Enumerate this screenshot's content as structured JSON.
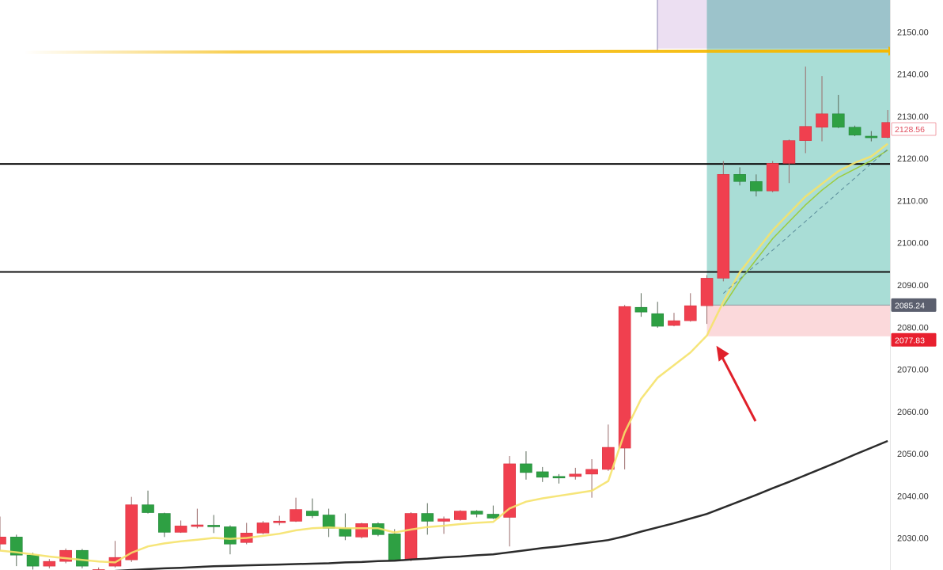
{
  "chart_data": {
    "type": "candlestick",
    "title": "",
    "xlabel": "",
    "ylabel": "",
    "ylim": [
      2022.4,
      2157.6
    ],
    "grid": false,
    "y_ticks": [
      "2150.00",
      "2140.00",
      "2130.00",
      "2120.00",
      "2110.00",
      "2100.00",
      "2090.00",
      "2080.00",
      "2070.00",
      "2060.00",
      "2050.00",
      "2040.00",
      "2030.00"
    ],
    "y_tick_values": [
      2150,
      2140,
      2130,
      2120,
      2110,
      2100,
      2090,
      2080,
      2070,
      2060,
      2050,
      2040,
      2030
    ],
    "up_color": "#f0404f",
    "down_color": "#2ea043",
    "candles_ohlc": [
      [
        2028.55,
        2035.08,
        2027.05,
        2030.22
      ],
      [
        2030.22,
        2030.78,
        2023.32,
        2025.93
      ],
      [
        2025.93,
        2026.5,
        2022.5,
        2023.32
      ],
      [
        2023.32,
        2025.0,
        2022.8,
        2024.44
      ],
      [
        2024.44,
        2027.5,
        2024.0,
        2027.05
      ],
      [
        2027.05,
        2027.4,
        2022.8,
        2023.32
      ],
      [
        2021.5,
        2023.0,
        2021.0,
        2022.5
      ],
      [
        2023.32,
        2029.3,
        2023.0,
        2025.37
      ],
      [
        2024.81,
        2039.74,
        2024.3,
        2037.87
      ],
      [
        2037.87,
        2041.23,
        2035.8,
        2036.01
      ],
      [
        2035.82,
        2036.0,
        2030.22,
        2031.34
      ],
      [
        2031.34,
        2034.14,
        2031.2,
        2032.84
      ],
      [
        2033.0,
        2036.94,
        2032.28,
        2033.1
      ],
      [
        2033.02,
        2035.45,
        2031.16,
        2032.65
      ],
      [
        2032.65,
        2033.0,
        2026.12,
        2028.55
      ],
      [
        2028.92,
        2033.58,
        2028.5,
        2031.16
      ],
      [
        2031.16,
        2034.0,
        2030.9,
        2033.58
      ],
      [
        2033.8,
        2035.26,
        2033.02,
        2034.0
      ],
      [
        2033.96,
        2039.55,
        2033.8,
        2036.75
      ],
      [
        2036.38,
        2039.37,
        2034.7,
        2035.26
      ],
      [
        2035.45,
        2036.94,
        2030.22,
        2032.28
      ],
      [
        2032.28,
        2035.82,
        2029.48,
        2030.41
      ],
      [
        2030.22,
        2033.6,
        2029.9,
        2033.4
      ],
      [
        2033.4,
        2033.7,
        2030.4,
        2030.78
      ],
      [
        2030.97,
        2032.09,
        2024.5,
        2024.81
      ],
      [
        2024.81,
        2036.1,
        2024.5,
        2035.82
      ],
      [
        2035.82,
        2038.25,
        2030.78,
        2033.96
      ],
      [
        2033.96,
        2035.08,
        2030.97,
        2034.52
      ],
      [
        2034.33,
        2036.6,
        2034.1,
        2036.38
      ],
      [
        2036.38,
        2036.6,
        2034.89,
        2035.64
      ],
      [
        2035.64,
        2037.69,
        2034.5,
        2034.7
      ],
      [
        2034.89,
        2049.44,
        2027.99,
        2047.58
      ],
      [
        2047.58,
        2050.56,
        2043.84,
        2045.52
      ],
      [
        2045.7,
        2046.83,
        2043.28,
        2044.4
      ],
      [
        2044.6,
        2045.15,
        2042.91,
        2044.55
      ],
      [
        2044.59,
        2046.64,
        2043.84,
        2045.15
      ],
      [
        2045.15,
        2048.69,
        2039.55,
        2046.27
      ],
      [
        2046.27,
        2056.9,
        2045.9,
        2051.49
      ],
      [
        2051.31,
        2085.26,
        2046.27,
        2084.89
      ],
      [
        2084.7,
        2088.06,
        2082.46,
        2083.58
      ],
      [
        2083.2,
        2086.01,
        2079.85,
        2080.22
      ],
      [
        2080.41,
        2083.4,
        2080.2,
        2081.53
      ],
      [
        2081.53,
        2088.06,
        2081.3,
        2085.08
      ],
      [
        2085.08,
        2092.35,
        2080.78,
        2091.61
      ],
      [
        2091.61,
        2119.4,
        2090.86,
        2116.23
      ],
      [
        2116.23,
        2117.91,
        2113.62,
        2114.55
      ],
      [
        2114.55,
        2116.23,
        2111.01,
        2112.31
      ],
      [
        2112.31,
        2119.4,
        2112.0,
        2118.84
      ],
      [
        2118.84,
        2124.5,
        2114.18,
        2124.25
      ],
      [
        2124.25,
        2141.8,
        2121.27,
        2127.61
      ],
      [
        2127.43,
        2139.55,
        2124.07,
        2130.6
      ],
      [
        2130.6,
        2135.08,
        2127.2,
        2127.43
      ],
      [
        2127.43,
        2127.8,
        2125.3,
        2125.56
      ],
      [
        2125.3,
        2126.5,
        2124.07,
        2125.2
      ],
      [
        2125.0,
        2131.5,
        2124.8,
        2128.55
      ]
    ],
    "ma_fast": {
      "color": "#f5e26a",
      "values": [
        2027.0,
        2026.6,
        2026.1,
        2025.6,
        2025.2,
        2024.8,
        2024.4,
        2024.2,
        2026.5,
        2028.0,
        2028.7,
        2029.2,
        2029.6,
        2030.0,
        2029.8,
        2030.0,
        2030.5,
        2031.0,
        2031.8,
        2032.3,
        2032.5,
        2032.3,
        2032.3,
        2032.3,
        2031.3,
        2032.0,
        2032.6,
        2032.9,
        2033.3,
        2033.6,
        2033.8,
        2037.0,
        2038.6,
        2039.4,
        2040.0,
        2040.6,
        2041.2,
        2043.5,
        2055.0,
        2063.0,
        2068.0,
        2071.0,
        2074.0,
        2078.0,
        2086.0,
        2093.0,
        2098.0,
        2103.0,
        2107.0,
        2111.0,
        2114.0,
        2117.0,
        2119.0,
        2120.5,
        2123.5
      ]
    },
    "ma_green": {
      "color": "#9ccc3c",
      "start_index": 44,
      "values": [
        2085.0,
        2091.0,
        2096.0,
        2101.0,
        2105.0,
        2109.0,
        2112.5,
        2115.5,
        2117.5,
        2119.5,
        2122.0
      ]
    },
    "ma_slow": {
      "color": "#2b2b2b",
      "values": [
        2021.0,
        2021.2,
        2021.4,
        2021.5,
        2021.7,
        2021.9,
        2022.1,
        2022.2,
        2022.4,
        2022.6,
        2022.8,
        2022.9,
        2023.1,
        2023.3,
        2023.4,
        2023.5,
        2023.6,
        2023.7,
        2023.8,
        2023.9,
        2024.0,
        2024.2,
        2024.3,
        2024.5,
        2024.6,
        2024.9,
        2025.1,
        2025.4,
        2025.6,
        2025.9,
        2026.1,
        2026.6,
        2027.1,
        2027.6,
        2028.0,
        2028.5,
        2029.0,
        2029.5,
        2030.4,
        2031.5,
        2032.5,
        2033.5,
        2034.6,
        2035.7,
        2037.2,
        2038.7,
        2040.2,
        2041.8,
        2043.3,
        2044.9,
        2046.5,
        2048.1,
        2049.8,
        2051.4,
        2053.0
      ]
    },
    "dashed_trend": {
      "from": [
        44,
        2088.0
      ],
      "to": [
        54,
        2122.2
      ],
      "color": "#5a8c9a"
    },
    "horizontal_lines": [
      {
        "value": 2118.7,
        "color": "#111111"
      },
      {
        "value": 2093.1,
        "color": "#111111"
      }
    ],
    "target_arrow_line": {
      "value": 2145.5,
      "color": "#f5b800"
    },
    "position": {
      "entry": 2085.24,
      "entry_label": "2085.24",
      "stop": 2077.83,
      "stop_label": "2077.83",
      "start_index": 43,
      "profit_color": "#a9ddd6",
      "loss_color": "#fbd9db"
    },
    "last_price_label": "2128.56",
    "annotation_arrow": {
      "color": "#e0202a",
      "points_to_index": 43
    }
  }
}
